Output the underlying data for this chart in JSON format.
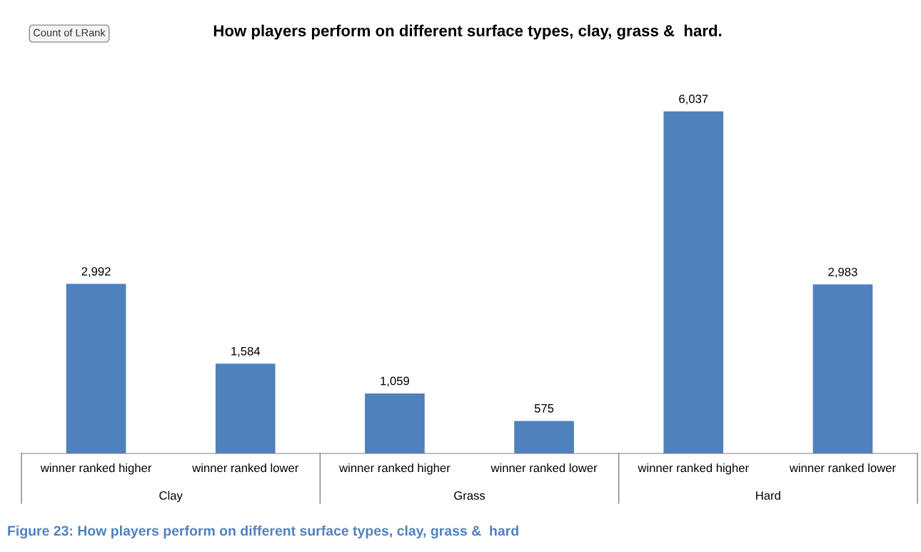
{
  "chart_data": {
    "type": "bar",
    "title": "How players perform on different surface types, clay, grass &  hard.",
    "categories": [
      "winner ranked higher",
      "winner ranked lower",
      "winner ranked higher",
      "winner ranked lower",
      "winner ranked higher",
      "winner ranked lower"
    ],
    "values": [
      2992,
      1584,
      1059,
      575,
      6037,
      2983
    ],
    "value_labels": [
      "2,992",
      "1,584",
      "1,059",
      "575",
      "6,037",
      "2,983"
    ],
    "color": "#4f81bd",
    "annotations": [
      "Count of LRank",
      "Clay",
      "Grass",
      "Hard",
      "Figure 23: How players perform on different surface types, clay, grass &  hard"
    ],
    "data_labels": false
  }
}
